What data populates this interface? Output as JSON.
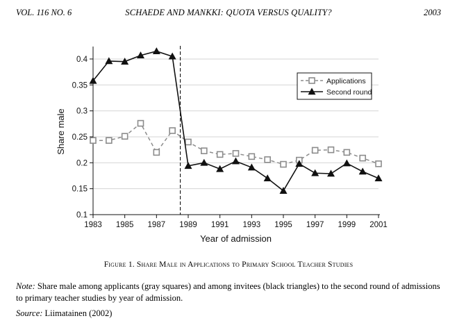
{
  "header": {
    "volume": "VOL. 116 NO. 6",
    "title": "SCHAEDE AND MANKKI: QUOTA VERSUS QUALITY?",
    "year": "2003"
  },
  "figure": {
    "caption": "Figure 1. Share Male in Applications to Primary School Teacher Studies",
    "note_label": "Note:",
    "note_text": "Share male among applicants (gray squares) and among invitees (black triangles) to the second round of admissions to primary teacher studies by year of admission.",
    "source_label": "Source:",
    "source_text": "Liimatainen (2002)"
  },
  "chart_data": {
    "type": "line",
    "xlabel": "Year of admission",
    "ylabel": "Share male",
    "xlim": [
      1983,
      2001
    ],
    "ylim": [
      0.1,
      0.42
    ],
    "x_ticks": [
      1983,
      1985,
      1987,
      1989,
      1991,
      1993,
      1995,
      1997,
      1999,
      2001
    ],
    "y_ticks": [
      0.1,
      0.15,
      0.2,
      0.25,
      0.3,
      0.35,
      0.4
    ],
    "y_tick_labels": [
      "0.1",
      "0.15",
      "0.2",
      "0.25",
      "0.3",
      "0.35",
      "0.4"
    ],
    "grid": true,
    "legend_position": "top-right",
    "vertical_line_x": 1988.5,
    "x": [
      1983,
      1984,
      1985,
      1986,
      1987,
      1988,
      1989,
      1990,
      1991,
      1992,
      1993,
      1994,
      1995,
      1996,
      1997,
      1998,
      1999,
      2000,
      2001
    ],
    "series": [
      {
        "name": "Applications",
        "marker": "square",
        "line_style": "dashed",
        "color": "#8c8c8c",
        "values": [
          0.243,
          0.243,
          0.251,
          0.276,
          0.22,
          0.262,
          0.24,
          0.223,
          0.216,
          0.218,
          0.212,
          0.206,
          0.197,
          0.205,
          0.224,
          0.225,
          0.22,
          0.209,
          0.198
        ]
      },
      {
        "name": "Second round",
        "marker": "triangle",
        "line_style": "solid",
        "color": "#111111",
        "values": [
          0.358,
          0.396,
          0.395,
          0.407,
          0.415,
          0.405,
          0.194,
          0.2,
          0.188,
          0.203,
          0.191,
          0.17,
          0.146,
          0.198,
          0.18,
          0.179,
          0.199,
          0.183,
          0.17
        ]
      }
    ]
  }
}
